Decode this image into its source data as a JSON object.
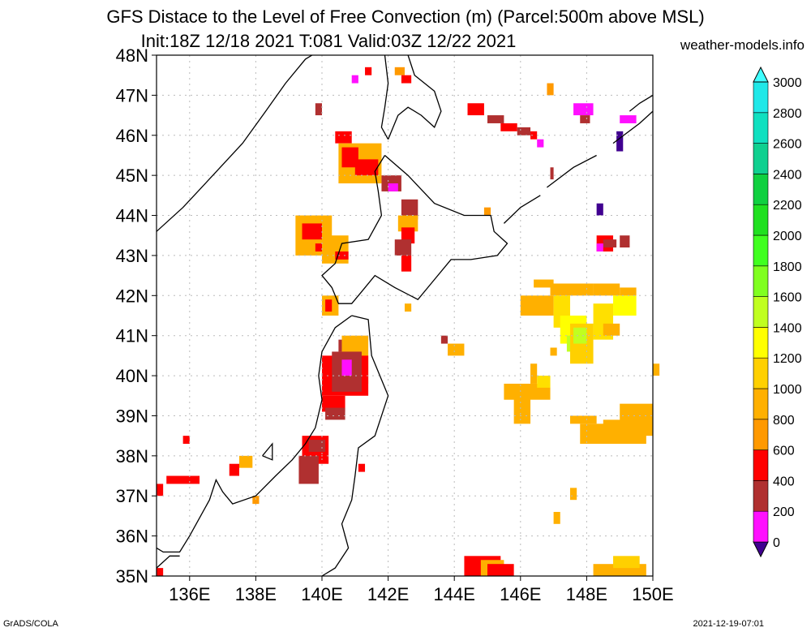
{
  "header": {
    "title": "GFS Distace to the Level of Free Convection (m) (Parcel:500m above MSL)",
    "subtitle": "Init:18Z 12/18 2021 T:081 Valid:03Z 12/22 2021",
    "site": "weather-models.info"
  },
  "footer": {
    "left": "GrADS/COLA",
    "right": "2021-12-19-07:01"
  },
  "map": {
    "lon_range": [
      135,
      150
    ],
    "lat_range": [
      35,
      48
    ],
    "lon_ticks": [
      "136E",
      "138E",
      "140E",
      "142E",
      "144E",
      "146E",
      "148E",
      "150E"
    ],
    "lat_ticks": [
      "35N",
      "36N",
      "37N",
      "38N",
      "39N",
      "40N",
      "41N",
      "42N",
      "43N",
      "44N",
      "45N",
      "46N",
      "47N",
      "48N"
    ],
    "coast_color": "#000000",
    "grid_color": "#bbbbbb"
  },
  "colorbar": {
    "labels": [
      "0",
      "200",
      "400",
      "600",
      "800",
      "1000",
      "1200",
      "1400",
      "1600",
      "1800",
      "2000",
      "2200",
      "2400",
      "2600",
      "2800",
      "3000"
    ],
    "colors": [
      "#400090",
      "#ff10ff",
      "#b03030",
      "#ff0000",
      "#ff9900",
      "#ffb000",
      "#ffd000",
      "#ffff00",
      "#c0ff20",
      "#80ff20",
      "#40ff20",
      "#20e020",
      "#10d040",
      "#10d090",
      "#10e0c0",
      "#20e8e8",
      "#40ffff"
    ]
  }
}
